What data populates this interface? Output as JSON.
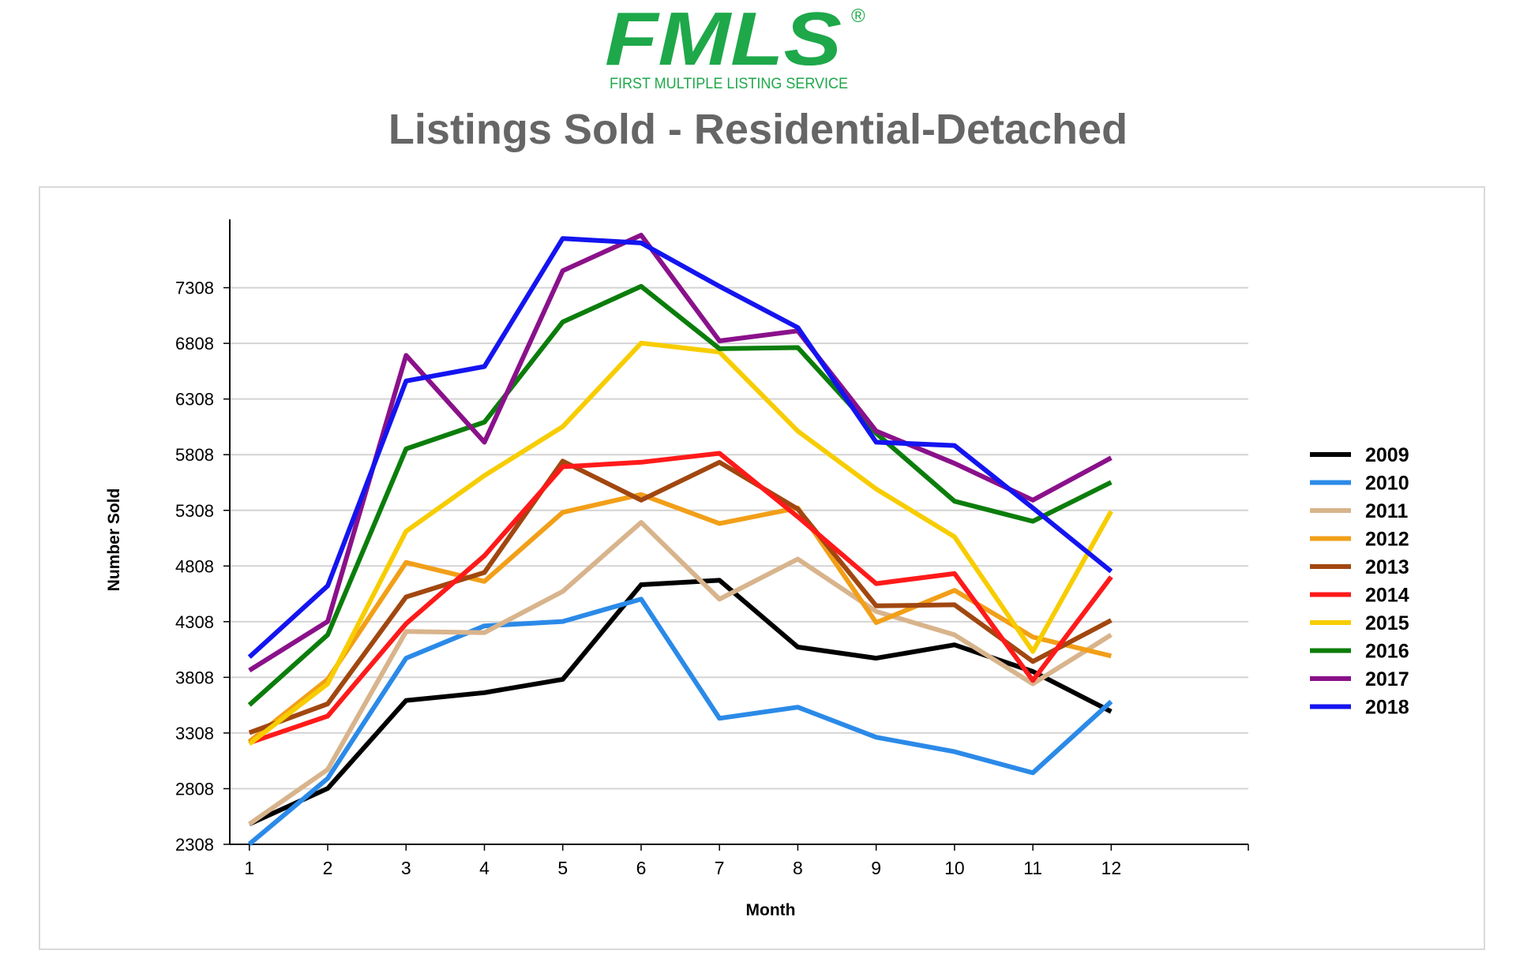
{
  "logo": {
    "text": "FMLS",
    "registered": "®",
    "tagline": "FIRST MULTIPLE LISTING SERVICE",
    "brand_color": "#1ea84a"
  },
  "title": "Listings Sold - Residential-Detached",
  "chart_data": {
    "type": "line",
    "title": "Listings Sold - Residential-Detached",
    "xlabel": "Month",
    "ylabel": "Number Sold",
    "x": [
      1,
      2,
      3,
      4,
      5,
      6,
      7,
      8,
      9,
      10,
      11,
      12
    ],
    "x_ticks": [
      "1",
      "2",
      "3",
      "4",
      "5",
      "6",
      "7",
      "8",
      "9",
      "10",
      "11",
      "12"
    ],
    "y_ticks": [
      "2308",
      "2808",
      "3308",
      "3808",
      "4308",
      "4808",
      "5308",
      "5808",
      "6308",
      "6808",
      "7308"
    ],
    "ylim": [
      2308,
      7780
    ],
    "xlim": [
      0.75,
      13.75
    ],
    "grid": true,
    "legend_position": "right",
    "series": [
      {
        "name": "2009",
        "color": "#000000",
        "values": [
          2490,
          2810,
          3600,
          3670,
          3790,
          4640,
          4680,
          4080,
          3980,
          4100,
          3860,
          3500
        ]
      },
      {
        "name": "2010",
        "color": "#2b8ae8",
        "values": [
          2310,
          2900,
          3980,
          4270,
          4310,
          4510,
          3440,
          3540,
          3270,
          3140,
          2950,
          3590
        ]
      },
      {
        "name": "2011",
        "color": "#d8b48c",
        "values": [
          2490,
          2980,
          4220,
          4210,
          4580,
          5200,
          4510,
          4870,
          4400,
          4190,
          3750,
          4190
        ]
      },
      {
        "name": "2012",
        "color": "#f29f18",
        "values": [
          3230,
          3790,
          4840,
          4670,
          5290,
          5450,
          5190,
          5330,
          4300,
          4590,
          4170,
          4000
        ]
      },
      {
        "name": "2013",
        "color": "#a14710",
        "values": [
          3310,
          3570,
          4530,
          4750,
          5750,
          5400,
          5740,
          5320,
          4450,
          4460,
          3950,
          4320
        ]
      },
      {
        "name": "2014",
        "color": "#ff1a1a",
        "values": [
          3220,
          3460,
          4290,
          4900,
          5700,
          5740,
          5820,
          5250,
          4650,
          4740,
          3780,
          4710
        ]
      },
      {
        "name": "2015",
        "color": "#f7cd00",
        "values": [
          3210,
          3750,
          5120,
          5620,
          6060,
          6810,
          6730,
          6020,
          5500,
          5070,
          4040,
          5300
        ]
      },
      {
        "name": "2016",
        "color": "#0b7d0b",
        "values": [
          3560,
          4190,
          5860,
          6100,
          7000,
          7320,
          6760,
          6770,
          6000,
          5390,
          5210,
          5560
        ]
      },
      {
        "name": "2017",
        "color": "#8a118a",
        "values": [
          3870,
          4310,
          6700,
          5920,
          7460,
          7780,
          6830,
          6920,
          6020,
          5730,
          5400,
          5780
        ]
      },
      {
        "name": "2018",
        "color": "#1414f0",
        "values": [
          3990,
          4630,
          6470,
          6600,
          7750,
          7710,
          7320,
          6950,
          5920,
          5890,
          5330,
          4760
        ]
      }
    ]
  }
}
